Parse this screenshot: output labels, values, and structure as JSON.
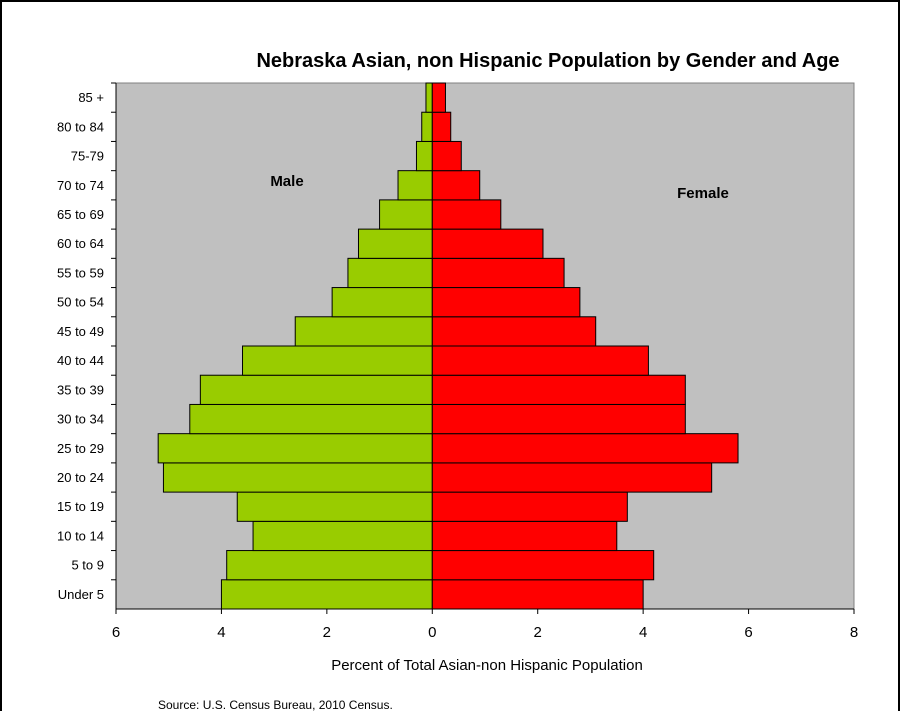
{
  "chart_data": {
    "type": "bar",
    "orientation": "horizontal",
    "title": "Nebraska Asian, non Hispanic Population by Gender and Age",
    "xlabel": "Percent of Total Asian-non Hispanic Population",
    "ylabel": "",
    "xlim": [
      -6,
      8
    ],
    "xticks": [
      -6,
      -4,
      -2,
      0,
      2,
      4,
      6,
      8
    ],
    "xtick_labels": [
      "6",
      "4",
      "2",
      "0",
      "2",
      "4",
      "6",
      "8"
    ],
    "categories": [
      "Under 5",
      "5 to 9",
      "10 to 14",
      "15 to 19",
      "20 to 24",
      "25 to 29",
      "30 to 34",
      "35 to 39",
      "40 to 44",
      "45 to 49",
      "50 to 54",
      "55 to 59",
      "60 to 64",
      "65 to 69",
      "70 to 74",
      "75-79",
      "80 to 84",
      "85 +"
    ],
    "series": [
      {
        "name": "Male",
        "color": "#99CC00",
        "values": [
          4.0,
          3.9,
          3.4,
          3.7,
          5.1,
          5.2,
          4.6,
          4.4,
          3.6,
          2.6,
          1.9,
          1.6,
          1.4,
          1.0,
          0.65,
          0.3,
          0.2,
          0.12
        ]
      },
      {
        "name": "Female",
        "color": "#FF0000",
        "values": [
          4.0,
          4.2,
          3.5,
          3.7,
          5.3,
          5.8,
          4.8,
          4.8,
          4.1,
          3.1,
          2.8,
          2.5,
          2.1,
          1.3,
          0.9,
          0.55,
          0.35,
          0.25
        ]
      }
    ],
    "annotations": [
      "Male",
      "Female"
    ],
    "source": "Source: U.S. Census Bureau, 2010 Census.",
    "plot_background": "#C0C0C0",
    "grid": false,
    "legend": "none"
  }
}
